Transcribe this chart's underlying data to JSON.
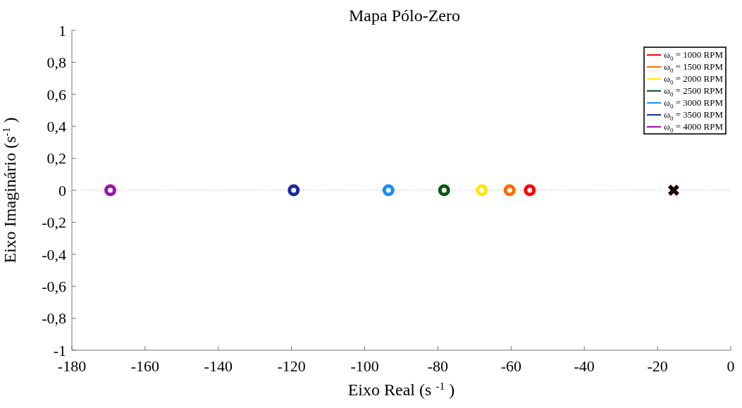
{
  "chart_data": {
    "type": "scatter",
    "title": "Mapa Pólo-Zero",
    "xlabel": "Eixo Real (s $^{-1}$)",
    "ylabel": "Eixo Imaginário (s$^{-1}$)",
    "xlim": [
      -180,
      0
    ],
    "xticks": [
      -180,
      -160,
      -140,
      -120,
      -100,
      -80,
      -60,
      -40,
      -20,
      0
    ],
    "ylim": [
      -1,
      1
    ],
    "yticks": [
      {
        "value": -1,
        "label": "-1"
      },
      {
        "value": -0.8,
        "label": "-0,8"
      },
      {
        "value": -0.6,
        "label": "-0,6"
      },
      {
        "value": -0.4,
        "label": "-0,4"
      },
      {
        "value": -0.2,
        "label": "-0,2"
      },
      {
        "value": 0,
        "label": "0"
      },
      {
        "value": 0.2,
        "label": "0,2"
      },
      {
        "value": 0.4,
        "label": "0,4"
      },
      {
        "value": 0.6,
        "label": "0,6"
      },
      {
        "value": 0.8,
        "label": "0,8"
      },
      {
        "value": 1,
        "label": "1"
      }
    ],
    "grid": false,
    "legend": "top right",
    "marker": "circle",
    "ref_lines": [
      {
        "axis": "y",
        "value": 0,
        "color": "#999999",
        "line_style": "dotted"
      }
    ],
    "series": [
      {
        "name": "ω$_{0}$ = 1000 RPM",
        "color": "#ff0000",
        "x": [
          -54.9
        ],
        "values": [
          0
        ]
      },
      {
        "name": "ω$_{0}$ = 1500 RPM",
        "color": "#ff6a00",
        "x": [
          -60.4
        ],
        "values": [
          0
        ]
      },
      {
        "name": "ω$_{0}$ = 2000 RPM",
        "color": "#ffe600",
        "x": [
          -68
        ],
        "values": [
          0
        ]
      },
      {
        "name": "ω$_{0}$ = 2500 RPM",
        "color": "#0a5a14",
        "x": [
          -78.3
        ],
        "values": [
          0
        ]
      },
      {
        "name": "ω$_{0}$ = 3000 RPM",
        "color": "#1a8cff",
        "x": [
          -93.5
        ],
        "values": [
          0
        ]
      },
      {
        "name": "ω$_{0}$ = 3500 RPM",
        "color": "#1a28a0",
        "x": [
          -119.4
        ],
        "values": [
          0
        ]
      },
      {
        "name": "ω$_{0}$ = 4000 RPM",
        "color": "#9a14a8",
        "x": [
          -169.5
        ],
        "values": [
          0
        ]
      },
      {
        "color": "#1a0500",
        "x": [
          -15.6
        ],
        "values": [
          0
        ],
        "marker": "cross"
      }
    ]
  }
}
